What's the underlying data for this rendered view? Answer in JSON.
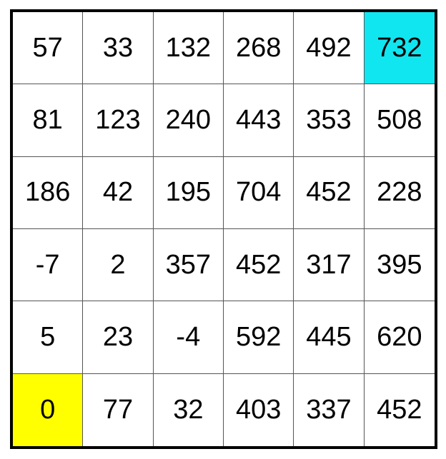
{
  "grid": {
    "rows": [
      [
        "57",
        "33",
        "132",
        "268",
        "492",
        "732"
      ],
      [
        "81",
        "123",
        "240",
        "443",
        "353",
        "508"
      ],
      [
        "186",
        "42",
        "195",
        "704",
        "452",
        "228"
      ],
      [
        "-7",
        "2",
        "357",
        "452",
        "317",
        "395"
      ],
      [
        "5",
        "23",
        "-4",
        "592",
        "445",
        "620"
      ],
      [
        "0",
        "77",
        "32",
        "403",
        "337",
        "452"
      ]
    ],
    "highlights": [
      {
        "row": 0,
        "col": 5,
        "color": "#10e6f0"
      },
      {
        "row": 5,
        "col": 0,
        "color": "#ffff00"
      }
    ]
  }
}
